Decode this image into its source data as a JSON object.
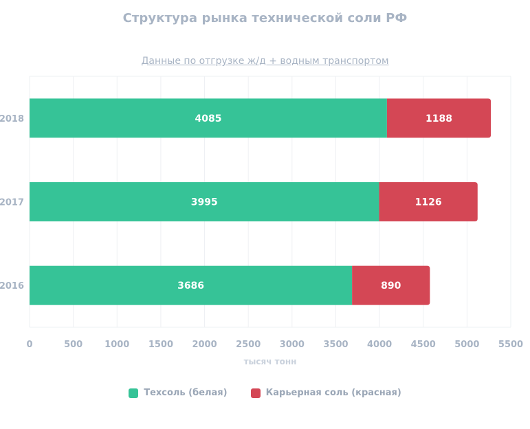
{
  "chart_data": {
    "type": "bar",
    "orientation": "horizontal",
    "stacked": true,
    "title": "Структура рынка технической соли РФ",
    "subtitle": "Данные по отгрузке  ж/д + водным транспортом",
    "xlabel": "тысяч тонн",
    "ylabel": "",
    "categories": [
      "2018",
      "2017",
      "2016"
    ],
    "series": [
      {
        "name": "Техсоль (белая)",
        "color": "#36c397",
        "values": [
          4085,
          3995,
          3686
        ]
      },
      {
        "name": "Карьерная соль (красная)",
        "color": "#d44755",
        "values": [
          1188,
          1126,
          890
        ]
      }
    ],
    "xlim": [
      0,
      5500
    ],
    "xticks": [
      "0",
      "500",
      "1000",
      "1500",
      "2000",
      "2500",
      "3000",
      "3500",
      "4000",
      "4500",
      "5000",
      "5500"
    ],
    "grid": true,
    "legend_position": "bottom"
  }
}
